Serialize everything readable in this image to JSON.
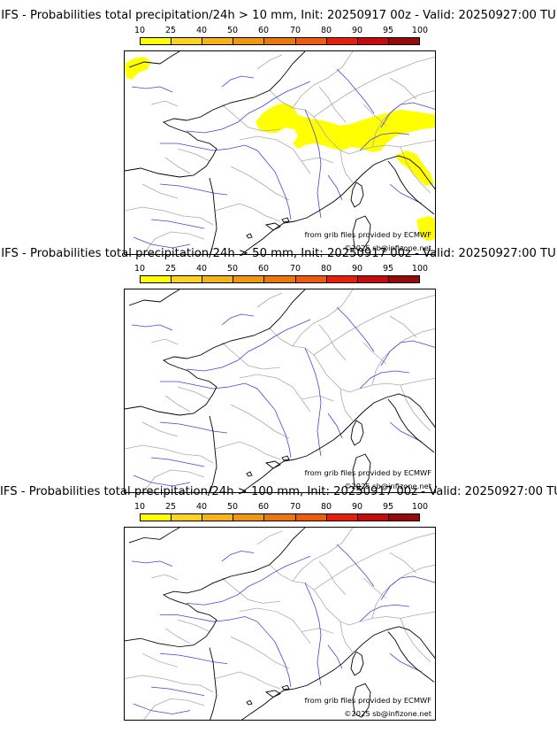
{
  "scale": {
    "ticks": [
      "10",
      "25",
      "40",
      "50",
      "60",
      "70",
      "80",
      "90",
      "95",
      "100"
    ],
    "colors": [
      "#ffff00",
      "#ffd21e",
      "#f5b414",
      "#f0960f",
      "#eb780a",
      "#f05a0a",
      "#e61e0a",
      "#c80a0a",
      "#960a0a",
      "#640a0a"
    ]
  },
  "map": {
    "border_color": "#aaaaaa",
    "river_color": "#4444dd",
    "coast_color": "#000000",
    "precip_color": "#ffff00"
  },
  "panels": [
    {
      "title": "IFS - Probabilities total precipitation/24h > 10 mm, Init: 20250917 00z - Valid: 20250927:00 TU",
      "credit_line1": "from grib files provided by ECMWF",
      "credit_line2": "©2025 sb@infizone.net",
      "has_precip": true
    },
    {
      "title": "IFS - Probabilities total precipitation/24h > 50 mm, Init: 20250917 00z - Valid: 20250927:00 TU",
      "credit_line1": "from grib files provided by ECMWF",
      "credit_line2": "©2025 sb@infizone.net",
      "has_precip": false
    },
    {
      "title": "IFS - Probabilities total precipitation/24h > 100 mm, Init: 20250917 00z - Valid: 20250927:00 TU",
      "credit_line1": "from grib files provided by ECMWF",
      "credit_line2": "©2025 sb@infizone.net",
      "has_precip": false
    }
  ]
}
